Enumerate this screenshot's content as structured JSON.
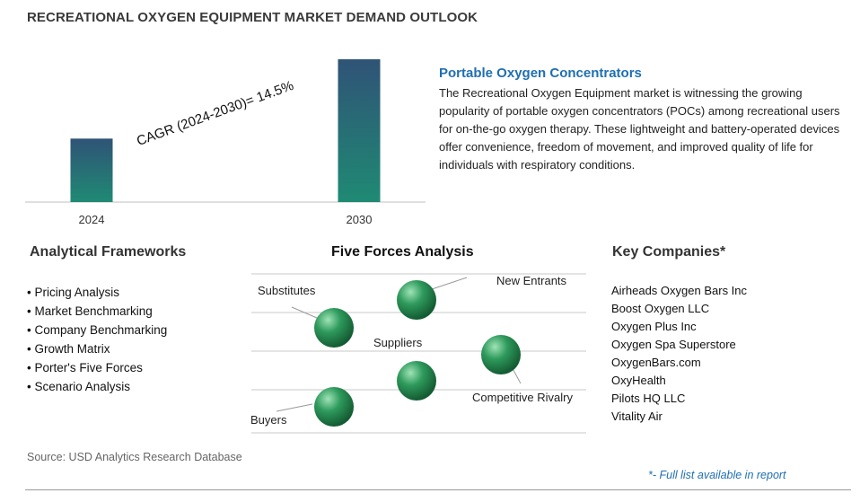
{
  "page": {
    "title": "RECREATIONAL OXYGEN EQUIPMENT MARKET DEMAND OUTLOOK",
    "source": "Source: USD Analytics Research Database",
    "footnote": "*- Full list available in report"
  },
  "chart_data": {
    "type": "bar",
    "categories": [
      "2024",
      "2030"
    ],
    "values": [
      1.0,
      2.25
    ],
    "title": "",
    "xlabel": "",
    "ylabel": "",
    "ylim": [
      0,
      2.25
    ],
    "annotation": "CAGR (2024-2030)=  14.5%",
    "grid": false,
    "colors": {
      "bar_top": "#2f5376",
      "bar_bottom": "#1f8a74",
      "axis": "#bfbfbf"
    }
  },
  "pane": {
    "title": "Portable Oxygen Concentrators",
    "text": "The Recreational Oxygen Equipment market is witnessing the growing popularity of portable oxygen concentrators (POCs) among recreational users for on-the-go oxygen therapy. These lightweight and battery-operated devices offer convenience, freedom of movement, and improved quality of life for individuals with respiratory conditions."
  },
  "frameworks": {
    "title": "Analytical Frameworks",
    "items": [
      "Pricing Analysis",
      "Market Benchmarking",
      "Company Benchmarking",
      "Growth Matrix",
      "Porter's Five Forces",
      "Scenario Analysis"
    ]
  },
  "five_forces": {
    "title": "Five Forces Analysis",
    "labels": {
      "substitutes": "Substitutes",
      "new_entrants": "New Entrants",
      "suppliers": "Suppliers",
      "competitive_rivalry": "Competitive Rivalry",
      "buyers": "Buyers"
    },
    "colors": {
      "sphere_light": "#9fe3b6",
      "sphere_mid": "#2e9a5c",
      "sphere_dark": "#145c33",
      "grid": "#c8c8c8"
    }
  },
  "companies": {
    "title": "Key Companies*",
    "items": [
      "Airheads Oxygen Bars Inc",
      "Boost Oxygen LLC",
      "Oxygen Plus Inc",
      "Oxygen Spa Superstore",
      "OxygenBars.com",
      "OxyHealth",
      "Pilots HQ LLC",
      "Vitality Air"
    ]
  }
}
